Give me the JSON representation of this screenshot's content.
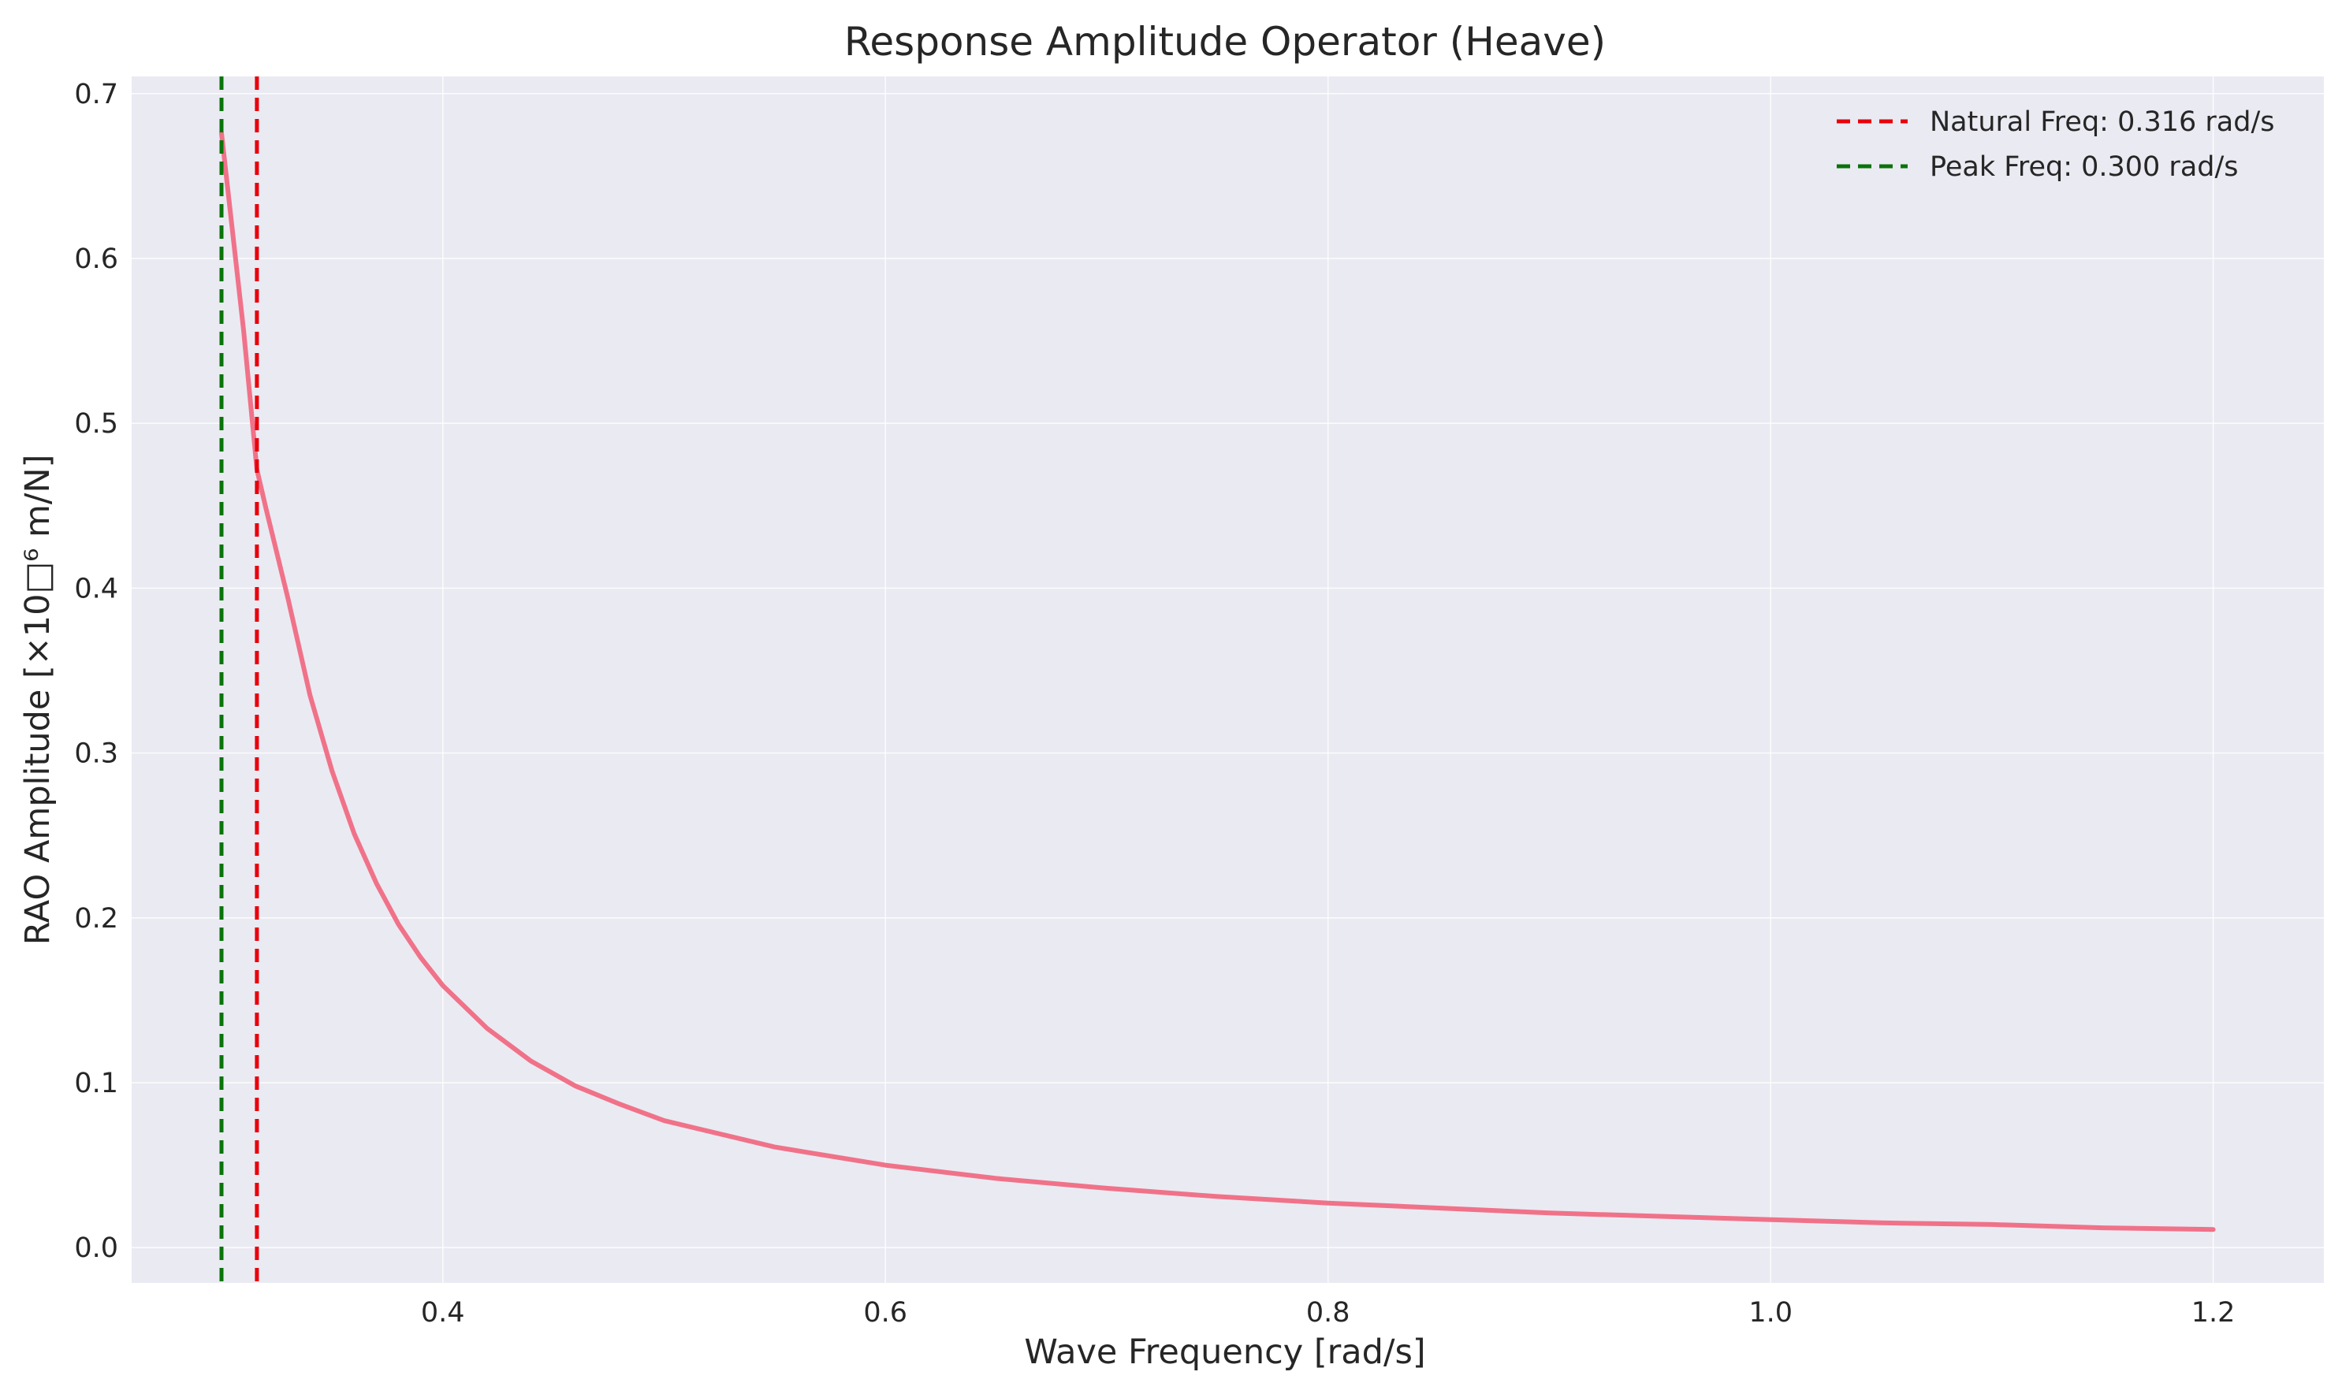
{
  "chart_data": {
    "type": "line",
    "title": "Response Amplitude Operator (Heave)",
    "xlabel": "Wave Frequency [rad/s]",
    "ylabel": "RAO Amplitude [×10□⁶ m/N]",
    "xlim": [
      0.2594,
      1.25
    ],
    "ylim": [
      -0.0214,
      0.7104
    ],
    "xticks": [
      0.4,
      0.6,
      0.8,
      1.0,
      1.2
    ],
    "xtick_labels": [
      "0.4",
      "0.6",
      "0.8",
      "1.0",
      "1.2"
    ],
    "yticks": [
      0.0,
      0.1,
      0.2,
      0.3,
      0.4,
      0.5,
      0.6,
      0.7
    ],
    "ytick_labels": [
      "0.0",
      "0.1",
      "0.2",
      "0.3",
      "0.4",
      "0.5",
      "0.6",
      "0.7"
    ],
    "grid": true,
    "legend_position": "top-right",
    "background_color": "#eaeaf2",
    "grid_color": "#ffffff",
    "series": [
      {
        "color": "#f07289",
        "style": "solid",
        "x": [
          0.3,
          0.31,
          0.316,
          0.32,
          0.33,
          0.34,
          0.35,
          0.36,
          0.37,
          0.38,
          0.39,
          0.4,
          0.42,
          0.44,
          0.46,
          0.48,
          0.5,
          0.55,
          0.6,
          0.65,
          0.7,
          0.75,
          0.8,
          0.85,
          0.9,
          0.95,
          1.0,
          1.05,
          1.1,
          1.15,
          1.2
        ],
        "y": [
          0.676,
          0.556,
          0.472,
          0.449,
          0.394,
          0.335,
          0.289,
          0.251,
          0.221,
          0.196,
          0.176,
          0.159,
          0.133,
          0.113,
          0.098,
          0.087,
          0.077,
          0.061,
          0.05,
          0.042,
          0.036,
          0.031,
          0.027,
          0.024,
          0.021,
          0.019,
          0.017,
          0.015,
          0.014,
          0.012,
          0.011
        ]
      }
    ],
    "reference_lines": [
      {
        "name": "Natural Freq: 0.316 rad/s",
        "x": 0.316,
        "color": "#e8000b",
        "style": "dashed"
      },
      {
        "name": "Peak Freq: 0.300 rad/s",
        "x": 0.3,
        "color": "#0a730a",
        "style": "dashed"
      }
    ]
  }
}
